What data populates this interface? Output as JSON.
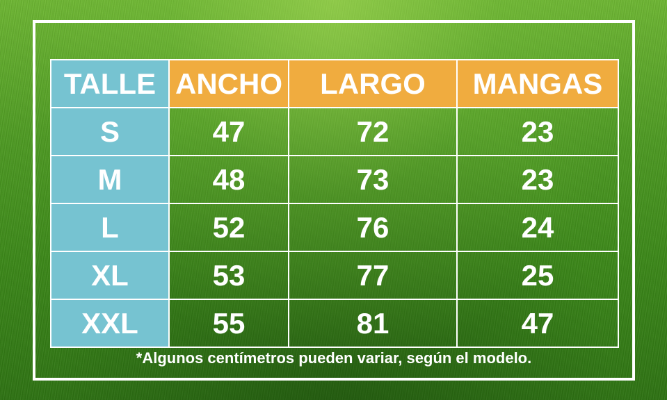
{
  "table": {
    "headers": [
      "TALLE",
      "ANCHO",
      "LARGO",
      "MANGAS"
    ],
    "rows": [
      [
        "S",
        "47",
        "72",
        "23"
      ],
      [
        "M",
        "48",
        "73",
        "23"
      ],
      [
        "L",
        "52",
        "76",
        "24"
      ],
      [
        "XL",
        "53",
        "77",
        "25"
      ],
      [
        "XXL",
        "55",
        "81",
        "47"
      ]
    ]
  },
  "footnote": "*Algunos centímetros pueden variar, según el modelo.",
  "colors": {
    "size_column": "#76c3d1",
    "measure_header": "#f0ac3f",
    "border": "#ffffff",
    "text": "#ffffff",
    "background": "#3f8a1f"
  }
}
